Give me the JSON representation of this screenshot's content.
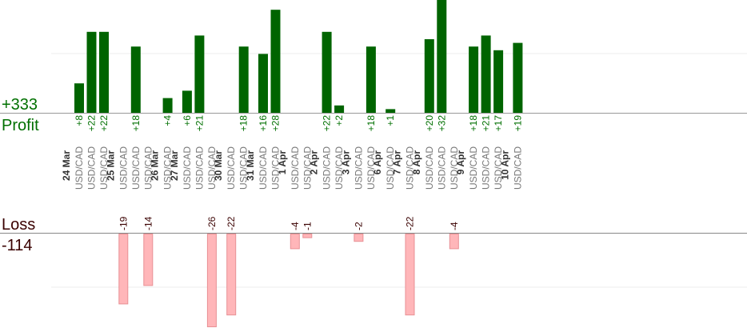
{
  "summary": {
    "profit_total": "+333",
    "profit_label": "Profit",
    "loss_label": "Loss",
    "loss_total": "-114"
  },
  "colors": {
    "profit_bar": "#006400",
    "profit_text": "#007000",
    "loss_bar_fill": "#ffb6b9",
    "loss_bar_stroke": "#e89094",
    "loss_text": "#3a0000",
    "date_text": "#333333",
    "pair_text": "#777777"
  },
  "chart_data": {
    "type": "bar",
    "dates": [
      "24 Mar",
      "25 Mar",
      "26 Mar",
      "27 Mar",
      "30 Mar",
      "31 Mar",
      "1 Apr",
      "2 Apr",
      "3 Apr",
      "6 Apr",
      "7 Apr",
      "8 Apr",
      "9 Apr",
      "10 Apr"
    ],
    "trades": [
      {
        "date": "24 Mar",
        "pair": "USD/CAD",
        "value": 8
      },
      {
        "date": "24 Mar",
        "pair": "USD/CAD",
        "value": 22
      },
      {
        "date": "24 Mar",
        "pair": "USD/CAD",
        "value": 22
      },
      {
        "date": "25 Mar",
        "pair": "USD/CAD",
        "value": -19
      },
      {
        "date": "25 Mar",
        "pair": "USD/CAD",
        "value": 18
      },
      {
        "date": "25 Mar",
        "pair": "USD/CAD",
        "value": -14
      },
      {
        "date": "26 Mar",
        "pair": "USD/CAD",
        "value": 4
      },
      {
        "date": "27 Mar",
        "pair": "USD/CAD",
        "value": 6
      },
      {
        "date": "27 Mar",
        "pair": "USD/CAD",
        "value": 21
      },
      {
        "date": "27 Mar",
        "pair": "USD/CAD",
        "value": -26
      },
      {
        "date": "30 Mar",
        "pair": "USD/CAD",
        "value": -22
      },
      {
        "date": "30 Mar",
        "pair": "USD/CAD",
        "value": 18
      },
      {
        "date": "31 Mar",
        "pair": "USD/CAD",
        "value": 16
      },
      {
        "date": "31 Mar",
        "pair": "USD/CAD",
        "value": 28
      },
      {
        "date": "1 Apr",
        "pair": "USD/CAD",
        "value": -4
      },
      {
        "date": "1 Apr",
        "pair": "USD/CAD",
        "value": -1
      },
      {
        "date": "2 Apr",
        "pair": "USD/CAD",
        "value": 22
      },
      {
        "date": "2 Apr",
        "pair": "USD/CAD",
        "value": 2
      },
      {
        "date": "3 Apr",
        "pair": "USD/CAD",
        "value": -2
      },
      {
        "date": "3 Apr",
        "pair": "USD/CAD",
        "value": 18
      },
      {
        "date": "6 Apr",
        "pair": "USD/CAD",
        "value": 1
      },
      {
        "date": "7 Apr",
        "pair": "USD/CAD",
        "value": -22
      },
      {
        "date": "8 Apr",
        "pair": "USD/CAD",
        "value": 20
      },
      {
        "date": "8 Apr",
        "pair": "USD/CAD",
        "value": 32
      },
      {
        "date": "8 Apr",
        "pair": "USD/CAD",
        "value": -4
      },
      {
        "date": "9 Apr",
        "pair": "USD/CAD",
        "value": 18
      },
      {
        "date": "9 Apr",
        "pair": "USD/CAD",
        "value": 21
      },
      {
        "date": "9 Apr",
        "pair": "USD/CAD",
        "value": 17
      },
      {
        "date": "10 Apr",
        "pair": "USD/CAD",
        "value": 19
      }
    ]
  }
}
